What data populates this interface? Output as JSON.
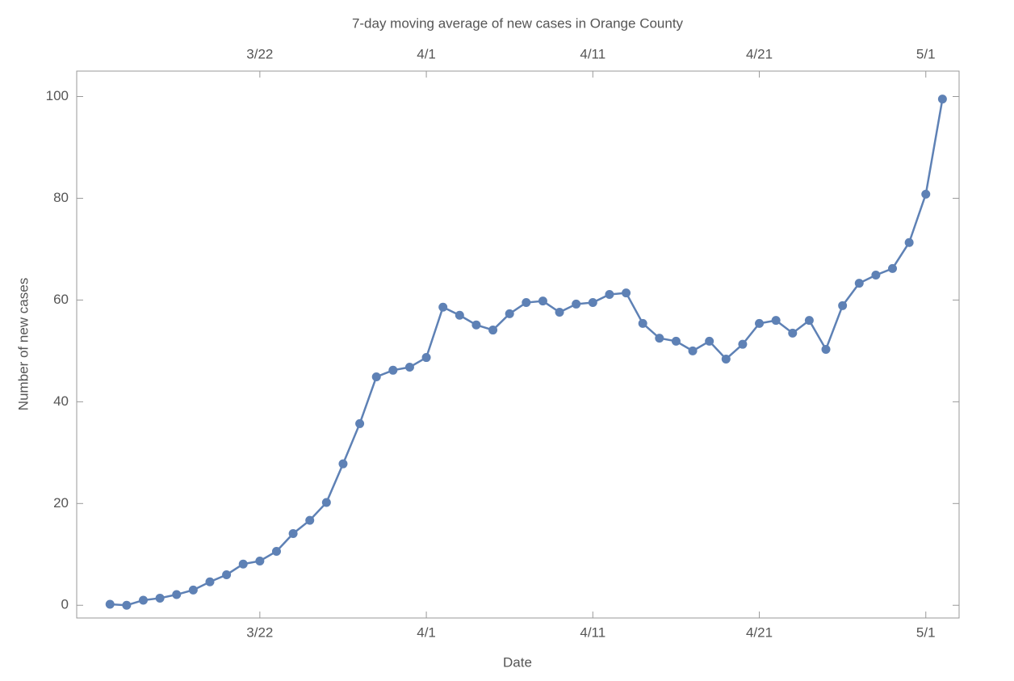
{
  "chart_data": {
    "type": "line",
    "title": "7-day moving average of new cases in Orange County",
    "x_label": "Date",
    "y_label": "Number of new cases",
    "x": [
      "3/13",
      "3/14",
      "3/15",
      "3/16",
      "3/17",
      "3/18",
      "3/19",
      "3/20",
      "3/21",
      "3/22",
      "3/23",
      "3/24",
      "3/25",
      "3/26",
      "3/27",
      "3/28",
      "3/29",
      "3/30",
      "3/31",
      "4/1",
      "4/2",
      "4/3",
      "4/4",
      "4/5",
      "4/6",
      "4/7",
      "4/8",
      "4/9",
      "4/10",
      "4/11",
      "4/12",
      "4/13",
      "4/14",
      "4/15",
      "4/16",
      "4/17",
      "4/18",
      "4/19",
      "4/20",
      "4/21",
      "4/22",
      "4/23",
      "4/24",
      "4/25",
      "4/26",
      "4/27",
      "4/28",
      "4/29",
      "4/30",
      "5/1",
      "5/2"
    ],
    "series": [
      {
        "name": "7-day moving average",
        "color": "#5e81b5",
        "values": [
          0.2,
          0,
          1.0,
          1.4,
          2.1,
          3.0,
          4.6,
          6.0,
          8.1,
          8.7,
          10.6,
          14.1,
          16.7,
          20.2,
          27.8,
          35.7,
          44.9,
          46.2,
          46.8,
          48.7,
          58.6,
          57.0,
          55.1,
          54.1,
          57.3,
          59.5,
          59.8,
          57.6,
          59.2,
          59.5,
          61.1,
          61.4,
          55.4,
          52.5,
          51.9,
          50.0,
          51.9,
          48.4,
          51.3,
          55.4,
          56.0,
          53.5,
          56.0,
          50.3,
          58.9,
          63.3,
          64.9,
          66.2,
          71.3,
          80.8,
          99.5
        ]
      }
    ],
    "xlim": [
      "3/11",
      "5/3"
    ],
    "xticks": [
      "3/22",
      "4/1",
      "4/11",
      "4/21",
      "5/1"
    ],
    "ylim": [
      -2.5,
      105
    ],
    "yticks": [
      0,
      20,
      40,
      60,
      80,
      100
    ]
  }
}
